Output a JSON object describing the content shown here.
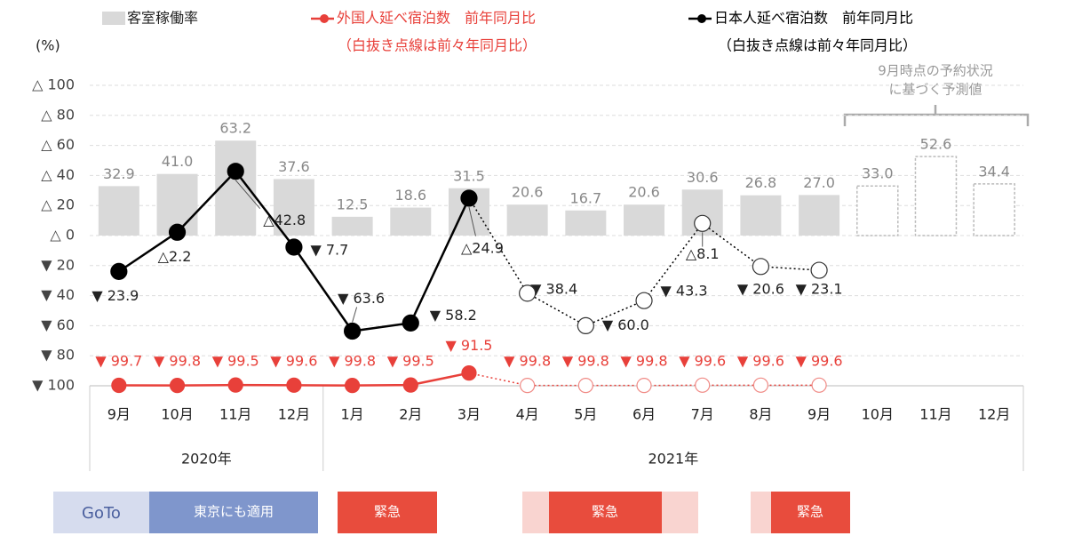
{
  "chart_data": {
    "type": "bar-line",
    "y_label": "(%)",
    "categories": [
      "9月",
      "10月",
      "11月",
      "12月",
      "1月",
      "2月",
      "3月",
      "4月",
      "5月",
      "6月",
      "7月",
      "8月",
      "9月",
      "10月",
      "11月",
      "12月"
    ],
    "groups": [
      {
        "label": "2020年",
        "span": 4
      },
      {
        "label": "2021年",
        "span": 12
      }
    ],
    "ylim": [
      -100,
      100
    ],
    "yticks": [
      {
        "value": 100,
        "label": "△ 100"
      },
      {
        "value": 80,
        "label": "△ 80"
      },
      {
        "value": 60,
        "label": "△ 60"
      },
      {
        "value": 40,
        "label": "△ 40"
      },
      {
        "value": 20,
        "label": "△ 20"
      },
      {
        "value": 0,
        "label": "△ 0"
      },
      {
        "value": -20,
        "label": "▼ 20"
      },
      {
        "value": -40,
        "label": "▼ 40"
      },
      {
        "value": -60,
        "label": "▼ 60"
      },
      {
        "value": -80,
        "label": "▼ 80"
      },
      {
        "value": -100,
        "label": "▼ 100"
      }
    ],
    "grid": true,
    "series": [
      {
        "name": "客室稼働率",
        "kind": "bar",
        "color": "#d9d9d9",
        "values": [
          32.9,
          41.0,
          63.2,
          37.6,
          12.5,
          18.6,
          31.5,
          20.6,
          16.7,
          20.6,
          30.6,
          26.8,
          27.0,
          33.0,
          52.6,
          34.4
        ],
        "value_labels": [
          "32.9",
          "41.0",
          "63.2",
          "37.6",
          "12.5",
          "18.6",
          "31.5",
          "20.6",
          "16.7",
          "20.6",
          "30.6",
          "26.8",
          "27.0",
          "33.0",
          "52.6",
          "34.4"
        ],
        "bar_style": [
          "solid",
          "solid",
          "solid",
          "solid",
          "solid",
          "solid",
          "solid",
          "solid",
          "solid",
          "solid",
          "solid",
          "solid",
          "solid",
          "dashed",
          "dashed",
          "dashed"
        ]
      },
      {
        "name": "外国人延べ宿泊数　前年同月比",
        "note": "（白抜き点線は前々年同月比）",
        "kind": "line",
        "color": "#e8403a",
        "values": [
          -99.7,
          -99.8,
          -99.5,
          -99.6,
          -99.8,
          -99.5,
          -91.5,
          -99.8,
          -99.8,
          -99.8,
          -99.6,
          -99.6,
          -99.6,
          null,
          null,
          null
        ],
        "value_labels": [
          "▼ 99.7",
          "▼ 99.8",
          "▼ 99.5",
          "▼ 99.6",
          "▼ 99.8",
          "▼ 99.5",
          "▼ 91.5",
          "▼ 99.8",
          "▼ 99.8",
          "▼ 99.8",
          "▼ 99.6",
          "▼ 99.6",
          "▼ 99.6",
          null,
          null,
          null
        ],
        "markers": [
          "filled",
          "filled",
          "filled",
          "filled",
          "filled",
          "filled",
          "filled",
          "open",
          "open",
          "open",
          "open",
          "open",
          "open",
          null,
          null,
          null
        ]
      },
      {
        "name": "日本人延べ宿泊数　前年同月比",
        "note": "（白抜き点線は前々年同月比）",
        "kind": "line",
        "color": "#000000",
        "values": [
          -23.9,
          2.2,
          42.8,
          -7.7,
          -63.6,
          -58.2,
          24.9,
          -38.4,
          -60.0,
          -43.3,
          8.1,
          -20.6,
          -23.1,
          null,
          null,
          null
        ],
        "value_labels": [
          "▼ 23.9",
          "△2.2",
          "△42.8",
          "▼ 7.7",
          "▼ 63.6",
          "▼ 58.2",
          "△24.9",
          "▼ 38.4",
          "▼ 60.0",
          "▼ 43.3",
          "△8.1",
          "▼ 20.6",
          "▼ 23.1",
          null,
          null,
          null
        ],
        "markers": [
          "filled",
          "filled",
          "filled",
          "filled",
          "filled",
          "filled",
          "filled",
          "open",
          "open",
          "open",
          "open",
          "open",
          "open",
          null,
          null,
          null
        ]
      }
    ],
    "annotation": [
      "9月時点の予約状況",
      "に基づく予測値"
    ],
    "policy_bands": [
      "GoTo",
      "東京にも適用",
      "緊急",
      "緊急",
      "緊急"
    ]
  }
}
